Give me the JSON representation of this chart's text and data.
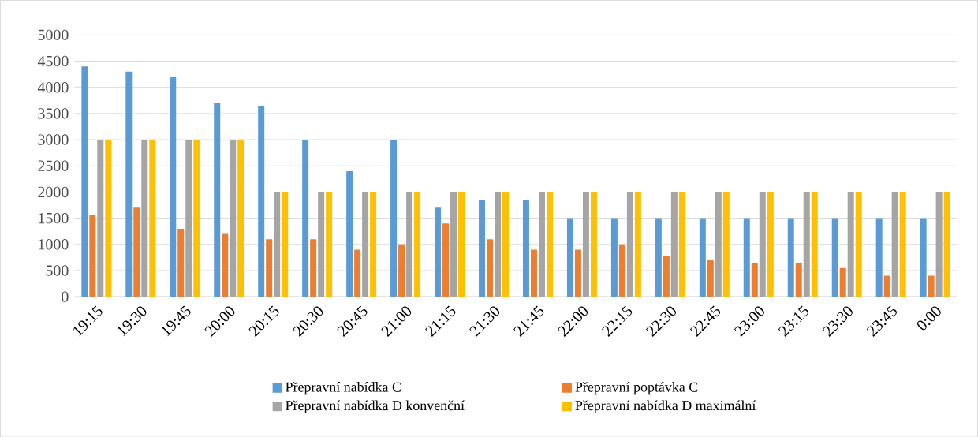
{
  "chart_data": {
    "type": "bar",
    "categories": [
      "19:15",
      "19:30",
      "19:45",
      "20:00",
      "20:15",
      "20:30",
      "20:45",
      "21:00",
      "21:15",
      "21:30",
      "21:45",
      "22:00",
      "22:15",
      "22:30",
      "22:45",
      "23:00",
      "23:15",
      "23:30",
      "23:45",
      "0:00"
    ],
    "series": [
      {
        "name": "Přepravní nabídka C",
        "color": "#5b9bd5",
        "values": [
          4400,
          4300,
          4200,
          3700,
          3650,
          3000,
          2400,
          3000,
          1700,
          1850,
          1850,
          1500,
          1500,
          1500,
          1500,
          1500,
          1500,
          1500,
          1500,
          1500
        ]
      },
      {
        "name": "Přepravní poptávka C",
        "color": "#ed7d31",
        "values": [
          1560,
          1700,
          1300,
          1200,
          1100,
          1100,
          900,
          1000,
          1400,
          1100,
          900,
          900,
          1000,
          780,
          700,
          650,
          650,
          550,
          400,
          400
        ]
      },
      {
        "name": "Přepravní nabídka D konvenční",
        "color": "#a5a5a5",
        "values": [
          3000,
          3000,
          3000,
          3000,
          2000,
          2000,
          2000,
          2000,
          2000,
          2000,
          2000,
          2000,
          2000,
          2000,
          2000,
          2000,
          2000,
          2000,
          2000,
          2000
        ]
      },
      {
        "name": "Přepravní nabídka D maximální",
        "color": "#ffc000",
        "values": [
          3000,
          3000,
          3000,
          3000,
          2000,
          2000,
          2000,
          2000,
          2000,
          2000,
          2000,
          2000,
          2000,
          2000,
          2000,
          2000,
          2000,
          2000,
          2000,
          2000
        ]
      }
    ],
    "ylim": [
      0,
      5000
    ],
    "yticks": [
      0,
      500,
      1000,
      1500,
      2000,
      2500,
      3000,
      3500,
      4000,
      4500,
      5000
    ],
    "grid": "y",
    "legend": "bottom"
  }
}
